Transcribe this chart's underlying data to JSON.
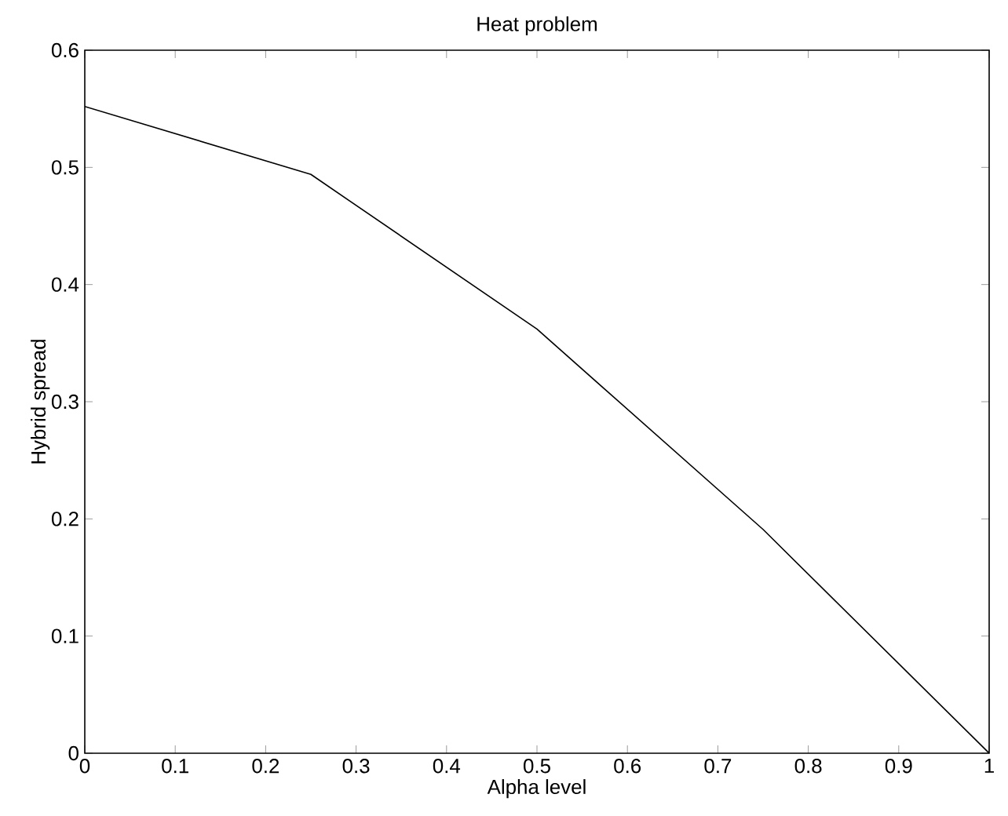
{
  "chart_data": {
    "type": "line",
    "title": "Heat problem",
    "xlabel": "Alpha level",
    "ylabel": "Hybrid spread",
    "x": [
      0,
      0.25,
      0.5,
      0.75,
      1
    ],
    "series": [
      {
        "color": "#000000",
        "values": [
          0.552,
          0.494,
          0.362,
          0.191,
          0
        ]
      }
    ],
    "xlim": [
      0,
      1
    ],
    "ylim": [
      0,
      0.6
    ],
    "xticks": [
      0,
      0.1,
      0.2,
      0.3,
      0.4,
      0.5,
      0.6,
      0.7,
      0.8,
      0.9,
      1
    ],
    "yticks": [
      0,
      0.1,
      0.2,
      0.3,
      0.4,
      0.5,
      0.6
    ],
    "grid": false,
    "marker": "none",
    "line_style": "solid"
  }
}
